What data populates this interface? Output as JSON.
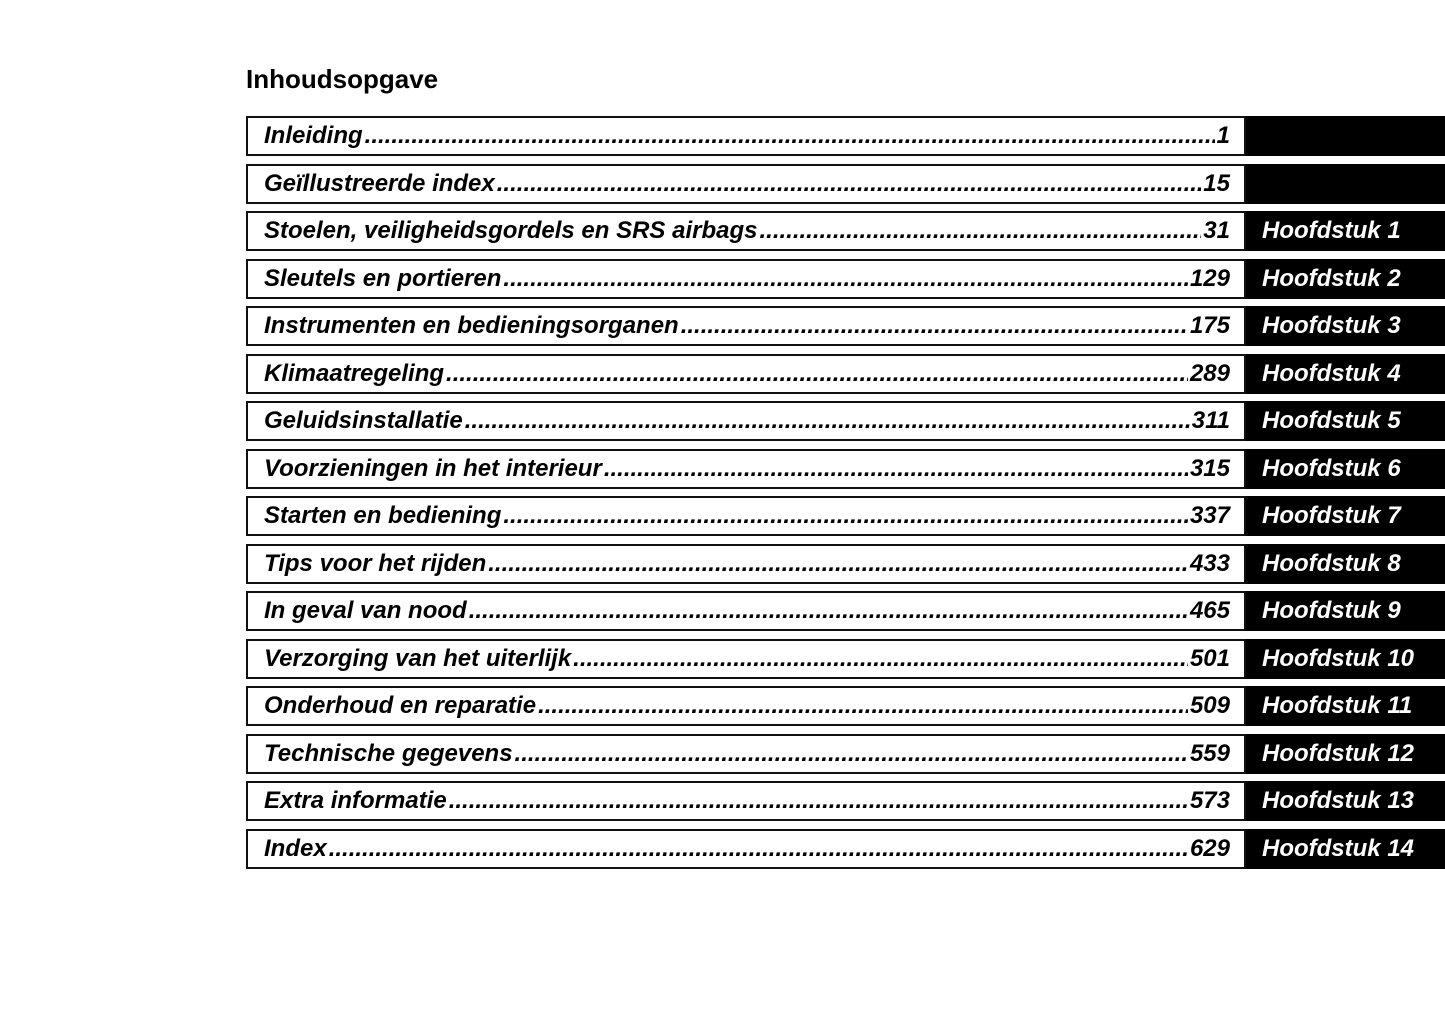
{
  "title": "Inhoudsopgave",
  "colors": {
    "tab_background": "#000000",
    "tab_text": "#ffffff",
    "border": "#111111"
  },
  "entries": [
    {
      "label": "Inleiding",
      "page": "1",
      "chapter": ""
    },
    {
      "label": "Geïllustreerde index",
      "page": "15",
      "chapter": ""
    },
    {
      "label": "Stoelen, veiligheidsgordels en SRS airbags",
      "page": "31",
      "chapter": "Hoofdstuk 1"
    },
    {
      "label": "Sleutels en portieren",
      "page": "129",
      "chapter": "Hoofdstuk 2"
    },
    {
      "label": "Instrumenten en bedieningsorganen",
      "page": "175",
      "chapter": "Hoofdstuk 3"
    },
    {
      "label": "Klimaatregeling",
      "page": "289",
      "chapter": "Hoofdstuk 4"
    },
    {
      "label": "Geluidsinstallatie",
      "page": "311",
      "chapter": "Hoofdstuk 5"
    },
    {
      "label": "Voorzieningen in het interieur",
      "page": "315",
      "chapter": "Hoofdstuk 6"
    },
    {
      "label": "Starten en bediening",
      "page": "337",
      "chapter": "Hoofdstuk 7"
    },
    {
      "label": "Tips voor het rijden",
      "page": "433",
      "chapter": "Hoofdstuk 8"
    },
    {
      "label": "In geval van nood",
      "page": "465",
      "chapter": "Hoofdstuk 9"
    },
    {
      "label": "Verzorging van het uiterlijk",
      "page": "501",
      "chapter": "Hoofdstuk 10"
    },
    {
      "label": "Onderhoud en reparatie",
      "page": "509",
      "chapter": "Hoofdstuk 11"
    },
    {
      "label": "Technische gegevens",
      "page": "559",
      "chapter": "Hoofdstuk 12"
    },
    {
      "label": "Extra informatie",
      "page": "573",
      "chapter": "Hoofdstuk 13"
    },
    {
      "label": "Index",
      "page": "629",
      "chapter": "Hoofdstuk 14"
    }
  ]
}
